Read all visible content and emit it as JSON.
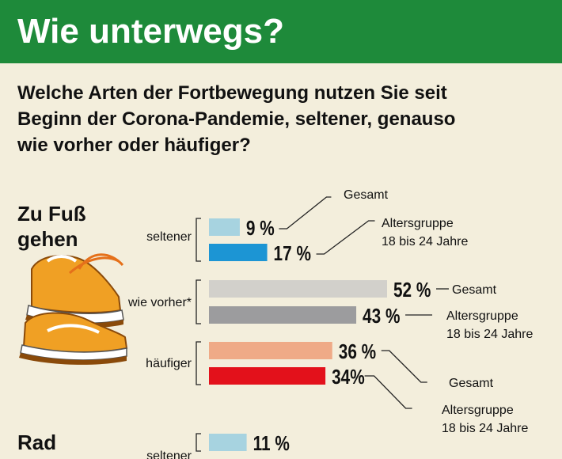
{
  "header": {
    "title": "Wie unterwegs?"
  },
  "question": {
    "lines": [
      "Welche Arten der Fortbewegung nutzen Sie seit",
      "Beginn der Corona-Pandemie, seltener, genauso",
      "wie vorher oder häufiger?"
    ]
  },
  "chart_data": {
    "type": "bar",
    "orientation": "horizontal",
    "groups": [
      {
        "name_lines": [
          "Zu Fuß",
          "gehen"
        ],
        "categories": [
          {
            "label": "seltener",
            "values": [
              9,
              17
            ],
            "value_labels": [
              "9 %",
              "17 %"
            ]
          },
          {
            "label": "wie vorher*",
            "values": [
              52,
              43
            ],
            "value_labels": [
              "52 %",
              "43 %"
            ]
          },
          {
            "label": "häufiger",
            "values": [
              36,
              34
            ],
            "value_labels": [
              "36 %",
              "34%"
            ]
          }
        ]
      },
      {
        "name_lines": [
          "Rad"
        ],
        "categories": [
          {
            "label": "seltener",
            "values": [
              11
            ],
            "value_labels": [
              "11 %"
            ]
          }
        ]
      }
    ],
    "series_annotations": [
      "Gesamt",
      "Altersgruppe",
      "18 bis 24 Jahre"
    ],
    "colors": {
      "seltener": [
        "#a7d3e0",
        "#1c95d4"
      ],
      "wie vorher*": [
        "#d2d0cb",
        "#9c9c9e"
      ],
      "häufiger": [
        "#efaa87",
        "#e3111b"
      ]
    }
  }
}
